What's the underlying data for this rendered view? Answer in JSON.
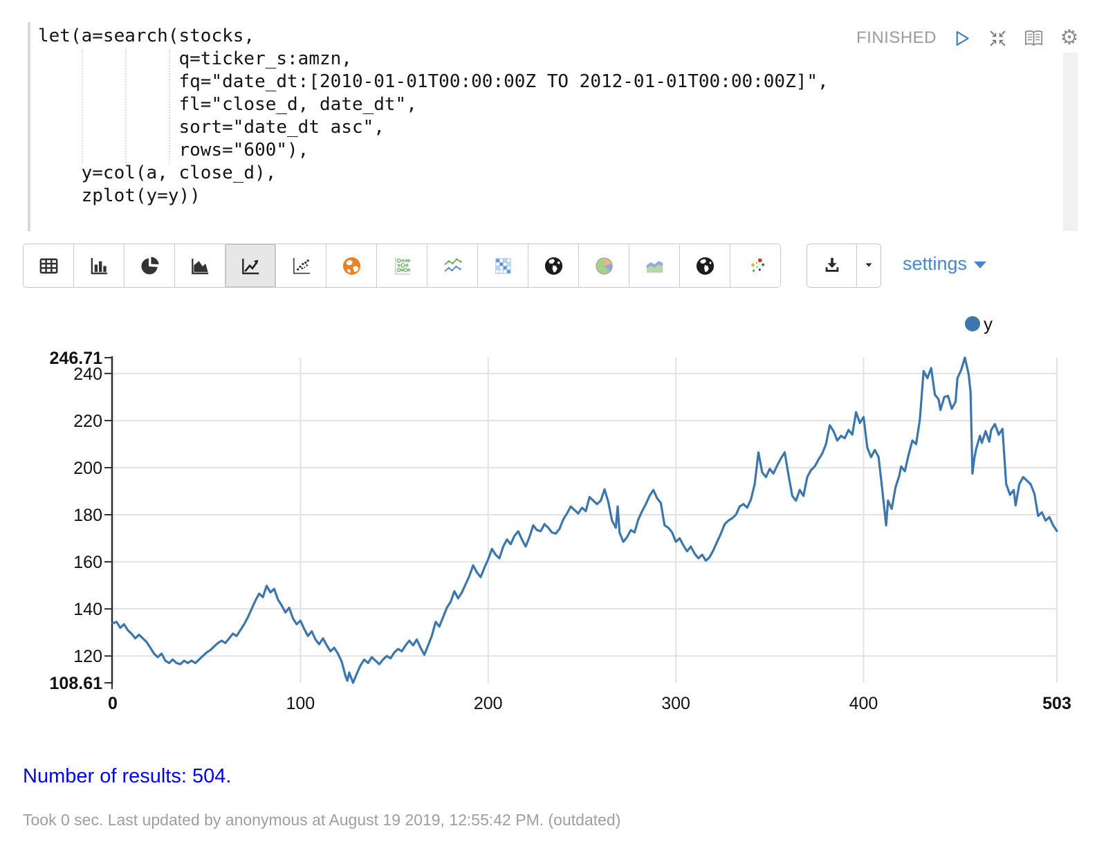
{
  "paragraph": {
    "status": "FINISHED",
    "code_text": "let(a=search(stocks,\n             q=ticker_s:amzn,\n             fq=\"date_dt:[2010-01-01T00:00:00Z TO 2012-01-01T00:00:00Z]\",\n             fl=\"close_d, date_dt\",\n             sort=\"date_dt asc\",\n             rows=\"600\"),\n    y=col(a, close_d),\n    zplot(y=y))"
  },
  "toolbar": {
    "settings_label": "settings",
    "buttons": [
      {
        "id": "table",
        "icon": "table-icon",
        "selected": false
      },
      {
        "id": "bar-chart",
        "icon": "bar-chart-icon",
        "selected": false
      },
      {
        "id": "pie-chart",
        "icon": "pie-chart-icon",
        "selected": false
      },
      {
        "id": "area-chart",
        "icon": "area-chart-icon",
        "selected": false
      },
      {
        "id": "line-chart",
        "icon": "line-chart-icon",
        "selected": true
      },
      {
        "id": "scatter-chart",
        "icon": "scatter-chart-icon",
        "selected": false
      },
      {
        "id": "map-orange",
        "icon": "globe-orange-icon",
        "selected": false
      },
      {
        "id": "bubble-chart",
        "icon": "bubble-chart-icon",
        "selected": false
      },
      {
        "id": "multi-line-chart",
        "icon": "multi-line-chart-icon",
        "selected": false
      },
      {
        "id": "heatmap",
        "icon": "heatmap-icon",
        "selected": false
      },
      {
        "id": "globe-dark-1",
        "icon": "globe-dark-icon",
        "selected": false
      },
      {
        "id": "pie-color",
        "icon": "pie-color-icon",
        "selected": false
      },
      {
        "id": "area-color",
        "icon": "area-color-icon",
        "selected": false
      },
      {
        "id": "globe-dark-2",
        "icon": "globe-dark2-icon",
        "selected": false
      },
      {
        "id": "scatter-color",
        "icon": "scatter-color-icon",
        "selected": false
      }
    ]
  },
  "chart_data": {
    "type": "line",
    "title": "",
    "xlabel": "",
    "ylabel": "",
    "xlim": [
      0,
      503
    ],
    "ylim": [
      108.61,
      246.71
    ],
    "x_ticks": [
      0,
      100,
      200,
      300,
      400,
      503
    ],
    "y_ticks": [
      246.71,
      240,
      220,
      200,
      180,
      160,
      140,
      120,
      108.61
    ],
    "grid": true,
    "legend_position": "top-right",
    "series": [
      {
        "name": "y",
        "color": "#3b76ad",
        "points": [
          [
            0,
            133.9
          ],
          [
            2,
            134.5
          ],
          [
            4,
            132
          ],
          [
            6,
            133.5
          ],
          [
            8,
            131
          ],
          [
            10,
            129.5
          ],
          [
            12,
            127.5
          ],
          [
            14,
            129
          ],
          [
            16,
            127.5
          ],
          [
            18,
            126
          ],
          [
            20,
            123.5
          ],
          [
            22,
            121
          ],
          [
            24,
            119.5
          ],
          [
            26,
            121
          ],
          [
            28,
            118
          ],
          [
            30,
            117
          ],
          [
            32,
            118.5
          ],
          [
            34,
            117
          ],
          [
            36,
            116.5
          ],
          [
            38,
            118
          ],
          [
            40,
            117
          ],
          [
            42,
            118
          ],
          [
            44,
            117
          ],
          [
            46,
            118.5
          ],
          [
            48,
            120
          ],
          [
            50,
            121.5
          ],
          [
            52,
            122.5
          ],
          [
            54,
            124
          ],
          [
            56,
            125.5
          ],
          [
            58,
            126.5
          ],
          [
            60,
            125.5
          ],
          [
            62,
            127.5
          ],
          [
            64,
            129.5
          ],
          [
            66,
            128.5
          ],
          [
            68,
            131
          ],
          [
            70,
            133.5
          ],
          [
            72,
            136.5
          ],
          [
            74,
            140
          ],
          [
            76,
            143.5
          ],
          [
            78,
            146.5
          ],
          [
            80,
            145
          ],
          [
            82,
            149.8
          ],
          [
            84,
            147
          ],
          [
            86,
            148.5
          ],
          [
            88,
            144
          ],
          [
            90,
            141.5
          ],
          [
            92,
            138.5
          ],
          [
            94,
            140.5
          ],
          [
            96,
            136
          ],
          [
            98,
            133.5
          ],
          [
            100,
            135
          ],
          [
            102,
            131.5
          ],
          [
            104,
            128.5
          ],
          [
            106,
            130.5
          ],
          [
            108,
            127
          ],
          [
            110,
            125
          ],
          [
            112,
            127.5
          ],
          [
            114,
            124.5
          ],
          [
            116,
            122
          ],
          [
            118,
            123.5
          ],
          [
            120,
            121
          ],
          [
            122,
            117.5
          ],
          [
            124,
            111.5
          ],
          [
            125,
            109.5
          ],
          [
            126,
            113
          ],
          [
            128,
            108.61
          ],
          [
            130,
            112.5
          ],
          [
            132,
            116
          ],
          [
            134,
            118.5
          ],
          [
            136,
            117
          ],
          [
            138,
            119.5
          ],
          [
            140,
            118
          ],
          [
            142,
            116.5
          ],
          [
            144,
            118.5
          ],
          [
            146,
            120
          ],
          [
            148,
            119
          ],
          [
            150,
            121.5
          ],
          [
            152,
            123
          ],
          [
            154,
            122
          ],
          [
            156,
            124.5
          ],
          [
            158,
            126.5
          ],
          [
            160,
            124.5
          ],
          [
            162,
            127
          ],
          [
            164,
            123.5
          ],
          [
            166,
            120.5
          ],
          [
            168,
            124.5
          ],
          [
            170,
            128.5
          ],
          [
            172,
            134.5
          ],
          [
            174,
            132.5
          ],
          [
            176,
            136.5
          ],
          [
            178,
            140.5
          ],
          [
            180,
            143
          ],
          [
            182,
            147.5
          ],
          [
            184,
            144.5
          ],
          [
            186,
            147
          ],
          [
            188,
            150.5
          ],
          [
            190,
            154
          ],
          [
            192,
            158.5
          ],
          [
            194,
            155.5
          ],
          [
            196,
            153.5
          ],
          [
            198,
            157.5
          ],
          [
            200,
            161
          ],
          [
            202,
            165.5
          ],
          [
            204,
            163
          ],
          [
            206,
            161.5
          ],
          [
            208,
            166.5
          ],
          [
            210,
            169.5
          ],
          [
            212,
            167.5
          ],
          [
            214,
            171
          ],
          [
            216,
            173
          ],
          [
            218,
            169.5
          ],
          [
            220,
            166.5
          ],
          [
            222,
            170.5
          ],
          [
            224,
            175.5
          ],
          [
            226,
            173.5
          ],
          [
            228,
            173
          ],
          [
            230,
            176
          ],
          [
            232,
            174.5
          ],
          [
            234,
            172.5
          ],
          [
            236,
            172
          ],
          [
            238,
            174
          ],
          [
            240,
            178
          ],
          [
            242,
            180.5
          ],
          [
            244,
            183.5
          ],
          [
            246,
            182
          ],
          [
            248,
            180.5
          ],
          [
            250,
            183
          ],
          [
            252,
            181.5
          ],
          [
            254,
            187.5
          ],
          [
            256,
            186
          ],
          [
            258,
            184.5
          ],
          [
            260,
            186
          ],
          [
            262,
            190.8
          ],
          [
            264,
            185.5
          ],
          [
            266,
            177.5
          ],
          [
            268,
            174.5
          ],
          [
            269,
            183.5
          ],
          [
            270,
            172.5
          ],
          [
            272,
            168.5
          ],
          [
            274,
            170.5
          ],
          [
            276,
            173.5
          ],
          [
            278,
            172.5
          ],
          [
            280,
            178
          ],
          [
            282,
            181.5
          ],
          [
            284,
            184.5
          ],
          [
            286,
            188
          ],
          [
            288,
            190.5
          ],
          [
            290,
            187
          ],
          [
            292,
            185
          ],
          [
            294,
            175.5
          ],
          [
            296,
            174.5
          ],
          [
            298,
            172.5
          ],
          [
            300,
            168.5
          ],
          [
            302,
            170
          ],
          [
            304,
            167
          ],
          [
            306,
            164.5
          ],
          [
            308,
            166.5
          ],
          [
            310,
            163.5
          ],
          [
            312,
            161.5
          ],
          [
            314,
            163
          ],
          [
            316,
            160.5
          ],
          [
            318,
            162
          ],
          [
            320,
            165
          ],
          [
            322,
            168.5
          ],
          [
            324,
            172
          ],
          [
            326,
            176
          ],
          [
            328,
            177.5
          ],
          [
            330,
            178.5
          ],
          [
            332,
            180
          ],
          [
            334,
            183.5
          ],
          [
            336,
            184.5
          ],
          [
            338,
            183
          ],
          [
            340,
            186.5
          ],
          [
            342,
            193
          ],
          [
            344,
            206.5
          ],
          [
            346,
            198
          ],
          [
            348,
            196
          ],
          [
            350,
            199.5
          ],
          [
            352,
            197.5
          ],
          [
            354,
            201
          ],
          [
            356,
            204
          ],
          [
            358,
            206.5
          ],
          [
            360,
            197
          ],
          [
            362,
            188
          ],
          [
            364,
            186
          ],
          [
            366,
            190.5
          ],
          [
            368,
            188
          ],
          [
            370,
            196
          ],
          [
            372,
            199
          ],
          [
            374,
            200.5
          ],
          [
            376,
            203.5
          ],
          [
            378,
            206
          ],
          [
            380,
            210
          ],
          [
            382,
            218
          ],
          [
            384,
            215.5
          ],
          [
            386,
            211.5
          ],
          [
            388,
            213.5
          ],
          [
            390,
            212.5
          ],
          [
            392,
            216
          ],
          [
            394,
            214
          ],
          [
            396,
            223.6
          ],
          [
            398,
            219
          ],
          [
            400,
            221.5
          ],
          [
            402,
            208.5
          ],
          [
            404,
            204.5
          ],
          [
            406,
            207.5
          ],
          [
            408,
            204.5
          ],
          [
            410,
            190.5
          ],
          [
            412,
            175.5
          ],
          [
            413,
            186
          ],
          [
            415,
            182.5
          ],
          [
            417,
            191.5
          ],
          [
            419,
            196.5
          ],
          [
            420,
            200.5
          ],
          [
            422,
            198.5
          ],
          [
            424,
            205.5
          ],
          [
            426,
            211.5
          ],
          [
            428,
            210
          ],
          [
            430,
            220.5
          ],
          [
            432,
            241
          ],
          [
            434,
            238
          ],
          [
            436,
            242.3
          ],
          [
            438,
            231
          ],
          [
            440,
            229
          ],
          [
            441,
            224.5
          ],
          [
            443,
            230
          ],
          [
            445,
            230.5
          ],
          [
            447,
            225
          ],
          [
            449,
            228
          ],
          [
            450,
            238
          ],
          [
            452,
            241.5
          ],
          [
            454,
            246.71
          ],
          [
            456,
            239.5
          ],
          [
            457,
            232
          ],
          [
            458,
            197.5
          ],
          [
            459,
            204
          ],
          [
            460,
            208
          ],
          [
            462,
            213.5
          ],
          [
            463,
            210.5
          ],
          [
            465,
            215.5
          ],
          [
            467,
            211
          ],
          [
            468,
            216
          ],
          [
            470,
            218.5
          ],
          [
            472,
            214
          ],
          [
            474,
            216.5
          ],
          [
            476,
            193
          ],
          [
            478,
            188.5
          ],
          [
            480,
            190.5
          ],
          [
            481,
            184
          ],
          [
            483,
            193
          ],
          [
            485,
            196
          ],
          [
            487,
            194.5
          ],
          [
            489,
            193
          ],
          [
            491,
            189
          ],
          [
            493,
            179.5
          ],
          [
            495,
            181
          ],
          [
            497,
            177.5
          ],
          [
            499,
            179
          ],
          [
            501,
            175.5
          ],
          [
            503,
            173.1
          ]
        ]
      }
    ]
  },
  "footer": {
    "results_text": "Number of results: 504.",
    "meta_text": "Took 0 sec. Last updated by anonymous at August 19 2019, 12:55:42 PM. (outdated)"
  },
  "colors": {
    "line_blue": "#3b76ad",
    "settings_link_blue": "#4a86c7",
    "results_blue": "#0000ee",
    "status_gray": "#9b9b9b",
    "play_blue": "#3a7bbf",
    "grid_gray": "#e2e2e2"
  }
}
